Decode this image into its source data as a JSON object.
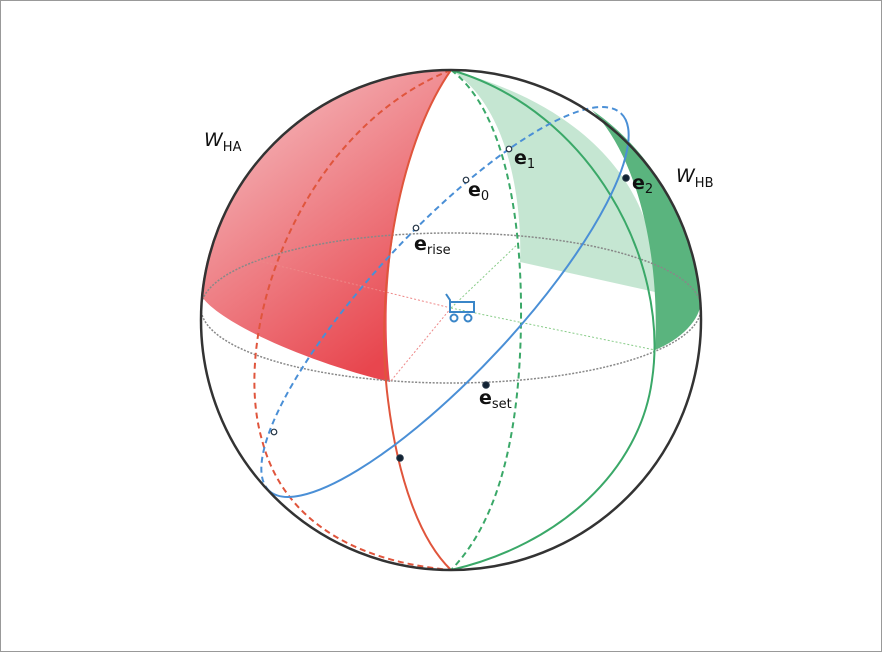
{
  "labels": [
    {
      "base": "W",
      "sub": "HA"
    },
    {
      "base": "W",
      "sub": "HB"
    },
    {
      "base": "e",
      "sub": "1"
    },
    {
      "base": "e",
      "sub": "0"
    },
    {
      "base": "e",
      "sub": "2"
    },
    {
      "base": "e",
      "sub": "rise"
    },
    {
      "base": "e",
      "sub": "set"
    }
  ]
}
